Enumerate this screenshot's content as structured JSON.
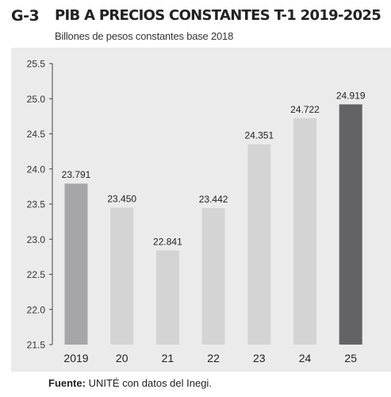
{
  "figure": {
    "code": "G-3",
    "title": "PIB A PRECIOS CONSTANTES T-1 2019-2025",
    "subtitle": "Billones de pesos constantes base 2018",
    "source_label": "Fuente:",
    "source_text": "UNITÉ con datos del Inegi."
  },
  "colors": {
    "background": "#ebebeb",
    "bar_default": "#d4d4d4",
    "bar_first": "#a6a6a8",
    "bar_last": "#636366",
    "axis": "#444444"
  },
  "chart_data": {
    "type": "bar",
    "title": "PIB A PRECIOS CONSTANTES T-1 2019-2025",
    "subtitle": "Billones de pesos constantes base 2018",
    "xlabel": "",
    "ylabel": "",
    "categories": [
      "2019",
      "20",
      "21",
      "22",
      "23",
      "24",
      "25"
    ],
    "values": [
      23.791,
      23.45,
      22.841,
      23.442,
      24.351,
      24.722,
      24.919
    ],
    "value_labels": [
      "23.791",
      "23.450",
      "22.841",
      "23.442",
      "24.351",
      "24.722",
      "24.919"
    ],
    "ylim": [
      21.5,
      25.5
    ],
    "yticks": [
      21.5,
      22.0,
      22.5,
      23.0,
      23.5,
      24.0,
      24.5,
      25.0,
      25.5
    ],
    "ytick_labels": [
      "21.5",
      "22.0",
      "22.5",
      "23.0",
      "23.5",
      "24.0",
      "24.5",
      "25.0",
      "25.5"
    ],
    "grid": false,
    "legend": "none"
  }
}
